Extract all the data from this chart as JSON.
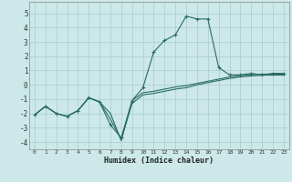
{
  "xlabel": "Humidex (Indice chaleur)",
  "xlim": [
    -0.5,
    23.5
  ],
  "ylim": [
    -4.5,
    5.8
  ],
  "xticks": [
    0,
    1,
    2,
    3,
    4,
    5,
    6,
    7,
    8,
    9,
    10,
    11,
    12,
    13,
    14,
    15,
    16,
    17,
    18,
    19,
    20,
    21,
    22,
    23
  ],
  "yticks": [
    -4,
    -3,
    -2,
    -1,
    0,
    1,
    2,
    3,
    4,
    5
  ],
  "background_color": "#cce8e8",
  "grid_color": "#aacccc",
  "line_color": "#2a6b65",
  "line1_x": [
    0,
    1,
    2,
    3,
    4,
    5,
    6,
    7,
    8,
    9,
    10,
    11,
    12,
    13,
    14,
    15,
    16,
    17,
    18,
    19,
    20,
    21,
    22,
    23
  ],
  "line1_y": [
    -2.1,
    -1.5,
    -2.0,
    -2.2,
    -1.8,
    -0.9,
    -1.2,
    -2.8,
    -3.7,
    -1.1,
    -0.2,
    2.3,
    3.1,
    3.5,
    4.8,
    4.6,
    4.6,
    1.2,
    0.7,
    0.7,
    0.8,
    0.7,
    0.8,
    0.8
  ],
  "line2_x": [
    0,
    1,
    2,
    3,
    4,
    5,
    6,
    7,
    8,
    9,
    10,
    11,
    12,
    13,
    14,
    15,
    16,
    17,
    18,
    19,
    20,
    21,
    22,
    23
  ],
  "line2_y": [
    -2.1,
    -1.5,
    -2.0,
    -2.2,
    -1.8,
    -0.9,
    -1.2,
    -2.0,
    -3.9,
    -1.1,
    -0.55,
    -0.45,
    -0.3,
    -0.15,
    -0.05,
    0.1,
    0.25,
    0.4,
    0.55,
    0.65,
    0.7,
    0.75,
    0.75,
    0.75
  ],
  "line3_x": [
    0,
    1,
    2,
    3,
    4,
    5,
    6,
    7,
    8,
    9,
    10,
    11,
    12,
    13,
    14,
    15,
    16,
    17,
    18,
    19,
    20,
    21,
    22,
    23
  ],
  "line3_y": [
    -2.1,
    -1.5,
    -2.0,
    -2.2,
    -1.8,
    -0.9,
    -1.2,
    -2.4,
    -3.8,
    -1.3,
    -0.7,
    -0.6,
    -0.45,
    -0.3,
    -0.2,
    0.0,
    0.15,
    0.3,
    0.45,
    0.55,
    0.62,
    0.67,
    0.68,
    0.68
  ]
}
